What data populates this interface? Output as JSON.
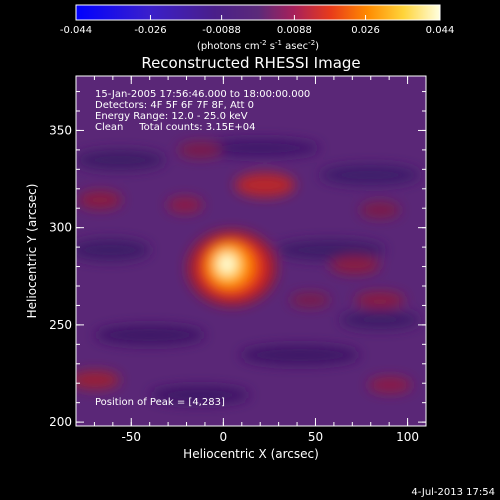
{
  "chart_data": {
    "type": "heatmap",
    "title": "Reconstructed RHESSI Image",
    "xlabel": "Heliocentric X (arcsec)",
    "ylabel": "Heliocentric Y (arcsec)",
    "xlim": [
      -80,
      110
    ],
    "ylim": [
      198,
      378
    ],
    "x_ticks": [
      "-50",
      "0",
      "50",
      "100"
    ],
    "x_tick_values": [
      -50,
      0,
      50,
      100
    ],
    "y_ticks": [
      "200",
      "250",
      "300",
      "350"
    ],
    "y_tick_values": [
      200,
      250,
      300,
      350
    ],
    "colorbar": {
      "min": -0.044,
      "max": 0.044,
      "tick_labels": [
        "-0.044",
        "-0.026",
        "-0.0088",
        "0.0088",
        "0.026",
        "0.044"
      ],
      "tick_values": [
        -0.044,
        -0.026,
        -0.0088,
        0.0088,
        0.026,
        0.044
      ],
      "units_prefix": "(photons cm",
      "units_exp1": "-2",
      "units_mid": " s",
      "units_exp2": "-1",
      "units_mid2": " asec",
      "units_exp3": "-2",
      "units_suffix": ")"
    },
    "annotations": {
      "time_range": "15-Jan-2005 17:56:46.000 to 18:00:00.000",
      "detectors": "Detectors: 4F 5F 6F 7F 8F, Att 0",
      "energy": "Energy Range: 12.0 - 25.0 keV",
      "clean": "Clean     Total counts: 3.15E+04",
      "peak": "Position of Peak = [4,283]"
    },
    "peak": {
      "x": 4,
      "y": 283,
      "value": 0.044
    },
    "grid": false
  },
  "footer": {
    "timestamp": "4-Jul-2013 17:54"
  },
  "colors": {
    "background": "#000000",
    "foreground": "#ffffff",
    "negative_low": "#0000ff",
    "zero": "#6b2b8a",
    "positive_high": "#ffffe0"
  }
}
